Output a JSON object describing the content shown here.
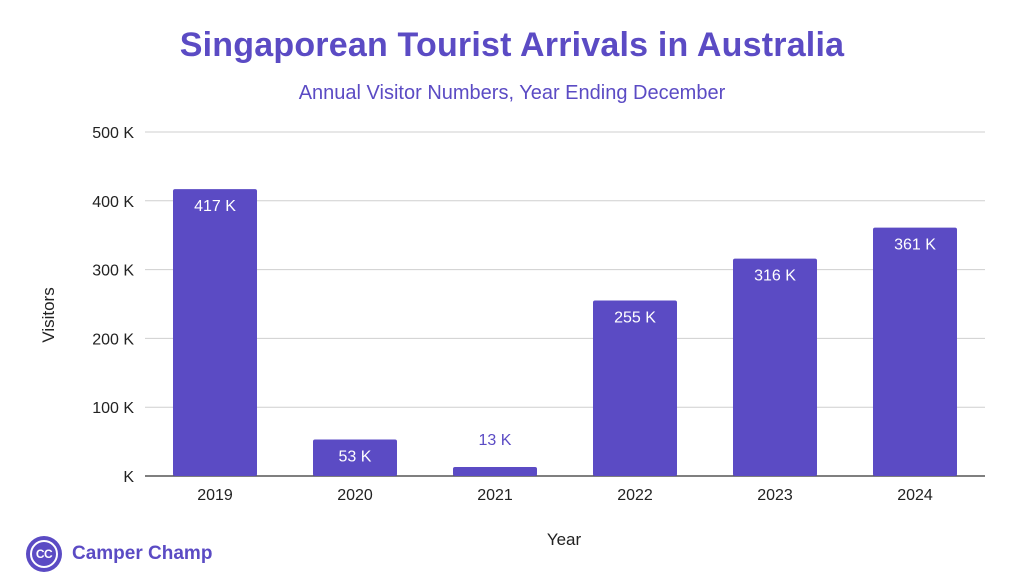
{
  "colors": {
    "accent": "#5b4bc4",
    "bar": "#5b4bc4",
    "grid": "#cfcfcf",
    "text": "#222222"
  },
  "brand": {
    "logo_text": "CC",
    "name": "Camper Champ"
  },
  "chart_data": {
    "type": "bar",
    "title": "Singaporean Tourist Arrivals in Australia",
    "subtitle": "Annual Visitor Numbers, Year Ending December",
    "xlabel": "Year",
    "ylabel": "Visitors",
    "categories": [
      "2019",
      "2020",
      "2021",
      "2022",
      "2023",
      "2024"
    ],
    "values": [
      417,
      53,
      13,
      255,
      316,
      361
    ],
    "data_labels": [
      "417 K",
      "53 K",
      "13 K",
      "255 K",
      "316 K",
      "361 K"
    ],
    "ylim": [
      0,
      500
    ],
    "yticks": [
      0,
      100,
      200,
      300,
      400,
      500
    ],
    "ytick_labels": [
      "K",
      "100 K",
      "200 K",
      "300 K",
      "400 K",
      "500 K"
    ],
    "grid": true,
    "legend": "none"
  }
}
